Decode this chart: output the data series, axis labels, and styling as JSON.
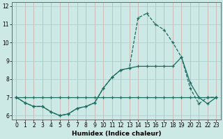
{
  "title": "",
  "xlabel": "Humidex (Indice chaleur)",
  "xlim": [
    -0.5,
    23.5
  ],
  "ylim": [
    5.8,
    12.2
  ],
  "yticks": [
    6,
    7,
    8,
    9,
    10,
    11,
    12
  ],
  "xticks": [
    0,
    1,
    2,
    3,
    4,
    5,
    6,
    7,
    8,
    9,
    10,
    11,
    12,
    13,
    14,
    15,
    16,
    17,
    18,
    19,
    20,
    21,
    22,
    23
  ],
  "bg_color": "#cce9e5",
  "grid_color": "#aacccc",
  "line_color": "#1a6b5e",
  "line1_x": [
    0,
    1,
    2,
    3,
    4,
    5,
    6,
    7,
    8,
    9,
    10,
    11,
    12,
    13,
    14,
    15,
    16,
    17,
    18,
    19,
    20,
    21,
    22,
    23
  ],
  "line1_y": [
    7.0,
    6.7,
    6.5,
    6.5,
    6.2,
    6.0,
    6.1,
    6.4,
    6.5,
    6.7,
    7.5,
    8.1,
    8.5,
    8.6,
    11.35,
    11.6,
    11.0,
    10.7,
    10.0,
    9.2,
    7.5,
    6.65,
    7.0,
    7.0
  ],
  "line2_x": [
    0,
    1,
    2,
    3,
    4,
    5,
    6,
    7,
    8,
    9,
    10,
    11,
    12,
    13,
    14,
    15,
    16,
    17,
    18,
    19,
    20,
    21,
    22,
    23
  ],
  "line2_y": [
    7.0,
    6.7,
    6.5,
    6.5,
    6.2,
    6.0,
    6.1,
    6.4,
    6.5,
    6.7,
    7.5,
    8.1,
    8.5,
    8.6,
    8.7,
    8.7,
    8.7,
    8.7,
    8.7,
    9.2,
    7.8,
    7.0,
    6.65,
    7.0
  ],
  "line3_x": [
    0,
    1,
    2,
    3,
    4,
    5,
    6,
    7,
    8,
    9,
    10,
    11,
    12,
    13,
    14,
    15,
    16,
    17,
    18,
    19,
    20,
    21,
    22,
    23
  ],
  "line3_y": [
    7.0,
    7.0,
    7.0,
    7.0,
    7.0,
    7.0,
    7.0,
    7.0,
    7.0,
    7.0,
    7.0,
    7.0,
    7.0,
    7.0,
    7.0,
    7.0,
    7.0,
    7.0,
    7.0,
    7.0,
    7.0,
    7.0,
    7.0,
    7.0
  ]
}
